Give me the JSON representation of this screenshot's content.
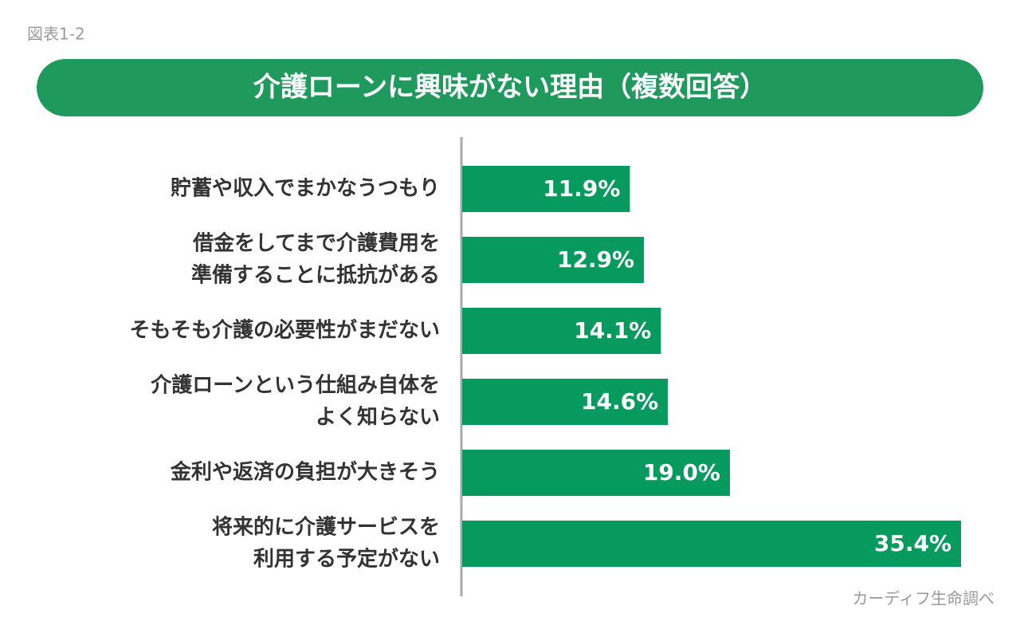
{
  "figure_label": "図表1-2",
  "source": "カーディフ生命調べ",
  "chart_data": {
    "type": "bar",
    "orientation": "horizontal",
    "title": "介護ローンに興味がない理由（複数回答）",
    "categories": [
      [
        "貯蓄や収入でまかなうつもり"
      ],
      [
        "借金をしてまで介護費用を",
        "準備することに抵抗がある"
      ],
      [
        "そもそも介護の必要性がまだない"
      ],
      [
        "介護ローンという仕組み自体を",
        "よく知らない"
      ],
      [
        "金利や返済の負担が大きそう"
      ],
      [
        "将来的に介護サービスを",
        "利用する予定がない"
      ]
    ],
    "values": [
      11.9,
      12.9,
      14.1,
      14.6,
      19.0,
      35.4
    ],
    "value_labels": [
      "11.9%",
      "12.9%",
      "14.1%",
      "14.6%",
      "19.0%",
      "35.4%"
    ],
    "color": "#079a5e",
    "title_color": "#1f9a5c"
  }
}
